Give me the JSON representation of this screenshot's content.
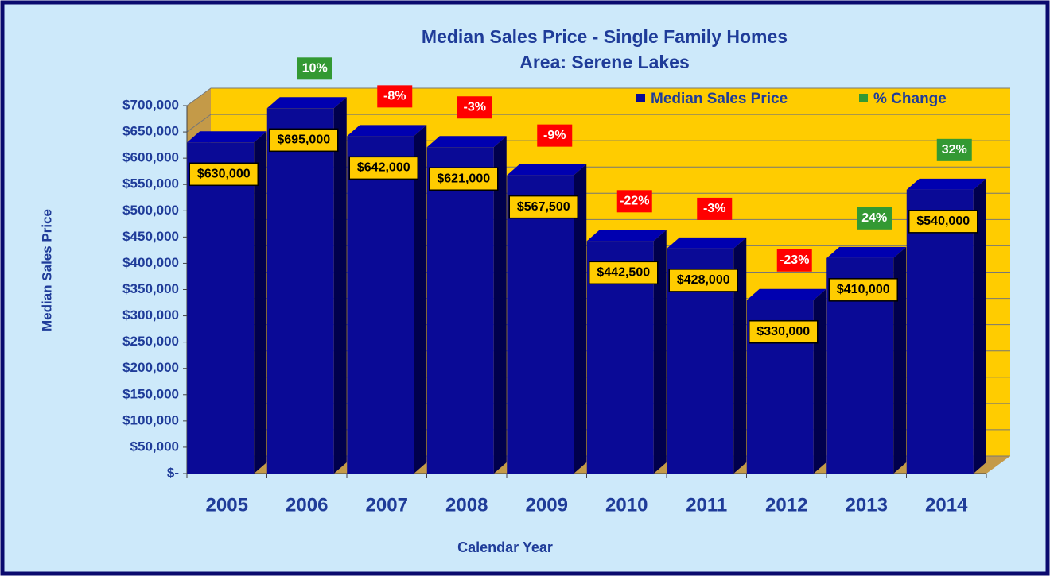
{
  "chart_data": {
    "type": "bar3d",
    "title": "Median Sales Price - Single Family Homes",
    "subtitle": "Area: Serene Lakes",
    "y_label": "Median Sales Price",
    "x_label": "Calendar Year",
    "categories": [
      "2005",
      "2006",
      "2007",
      "2008",
      "2009",
      "2010",
      "2011",
      "2012",
      "2013",
      "2014"
    ],
    "series": [
      {
        "name": "Median Sales Price",
        "color": "#0a0a96",
        "values": [
          630000,
          695000,
          642000,
          621000,
          567500,
          442500,
          428000,
          330000,
          410000,
          540000
        ],
        "value_labels": [
          "$630,000",
          "$695,000",
          "$642,000",
          "$621,000",
          "$567,500",
          "$442,500",
          "$428,000",
          "$330,000",
          "$410,000",
          "$540,000"
        ]
      },
      {
        "name": "% Change",
        "color": "#339933",
        "negative_color": "#ff0000",
        "values": [
          null,
          10,
          -8,
          -3,
          -9,
          -22,
          -3,
          -23,
          24,
          32
        ],
        "value_labels": [
          null,
          "10%",
          "-8%",
          "-3%",
          "-9%",
          "-22%",
          "-3%",
          "-23%",
          "24%",
          "32%"
        ]
      }
    ],
    "ylim": [
      0,
      700000
    ],
    "yticks": [
      {
        "value": 0,
        "label": "$-"
      },
      {
        "value": 50000,
        "label": "$50,000"
      },
      {
        "value": 100000,
        "label": "$100,000"
      },
      {
        "value": 150000,
        "label": "$150,000"
      },
      {
        "value": 200000,
        "label": "$200,000"
      },
      {
        "value": 250000,
        "label": "$250,000"
      },
      {
        "value": 300000,
        "label": "$300,000"
      },
      {
        "value": 350000,
        "label": "$350,000"
      },
      {
        "value": 400000,
        "label": "$400,000"
      },
      {
        "value": 450000,
        "label": "$450,000"
      },
      {
        "value": 500000,
        "label": "$500,000"
      },
      {
        "value": 550000,
        "label": "$550,000"
      },
      {
        "value": 600000,
        "label": "$600,000"
      },
      {
        "value": 650000,
        "label": "$650,000"
      },
      {
        "value": 700000,
        "label": "$700,000"
      }
    ],
    "grid": true
  }
}
